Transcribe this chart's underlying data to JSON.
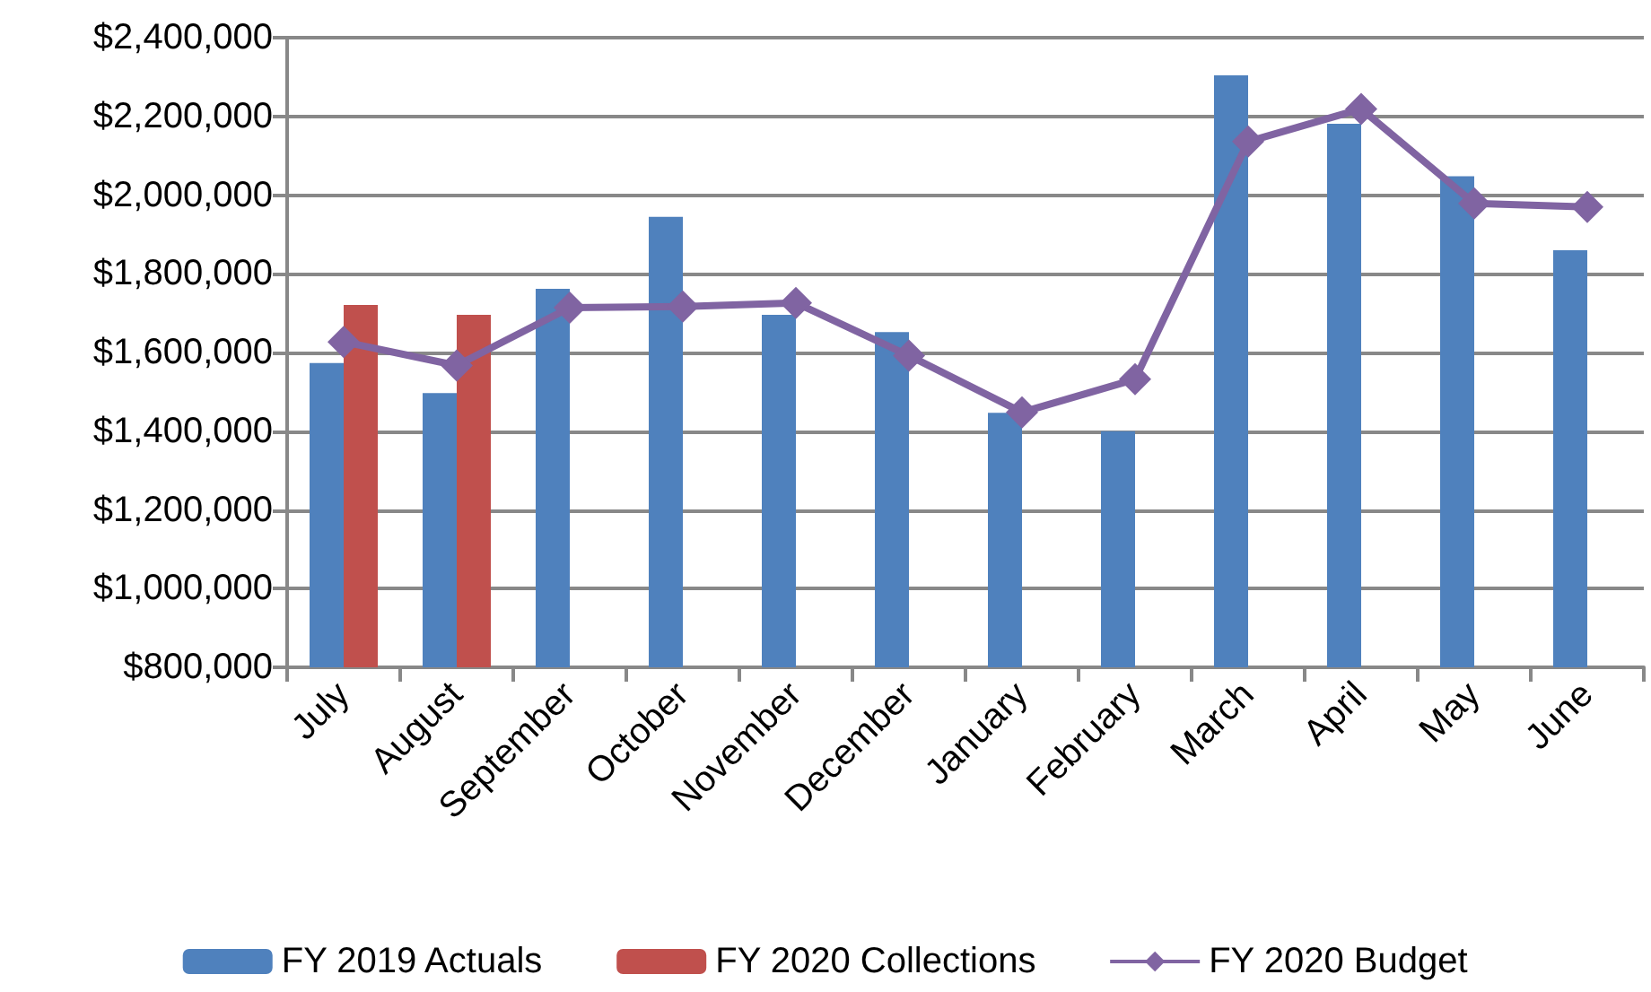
{
  "chart_data": {
    "type": "bar",
    "categories": [
      "July",
      "August",
      "September",
      "October",
      "November",
      "December",
      "January",
      "February",
      "March",
      "April",
      "May",
      "June"
    ],
    "series": [
      {
        "name": "FY 2019 Actuals",
        "color": "#4f81bd",
        "values": [
          1573000,
          1497000,
          1762000,
          1945000,
          1696000,
          1652000,
          1447000,
          1400000,
          2304000,
          2181000,
          2048000,
          1860000
        ]
      },
      {
        "name": "FY 2020 Collections",
        "color": "#c0504d",
        "values": [
          1721000,
          1696000,
          null,
          null,
          null,
          null,
          null,
          null,
          null,
          null,
          null,
          null
        ]
      },
      {
        "name": "FY 2020 Budget",
        "type": "line",
        "color": "#8064a2",
        "marker": "diamond",
        "values": [
          1627000,
          1567000,
          1714000,
          1717000,
          1726000,
          1592000,
          1448000,
          1532000,
          2136000,
          2219000,
          1979000,
          1970000
        ]
      }
    ],
    "ylim": [
      800000,
      2400000
    ],
    "yticks": [
      {
        "value": 800000,
        "label": "$800,000"
      },
      {
        "value": 1000000,
        "label": "$1,000,000"
      },
      {
        "value": 1200000,
        "label": "$1,200,000"
      },
      {
        "value": 1400000,
        "label": "$1,400,000"
      },
      {
        "value": 1600000,
        "label": "$1,600,000"
      },
      {
        "value": 1800000,
        "label": "$1,800,000"
      },
      {
        "value": 2000000,
        "label": "$2,000,000"
      },
      {
        "value": 2200000,
        "label": "$2,200,000"
      },
      {
        "value": 2400000,
        "label": "$2,400,000"
      }
    ],
    "grid": "y",
    "legend": "bottom"
  }
}
